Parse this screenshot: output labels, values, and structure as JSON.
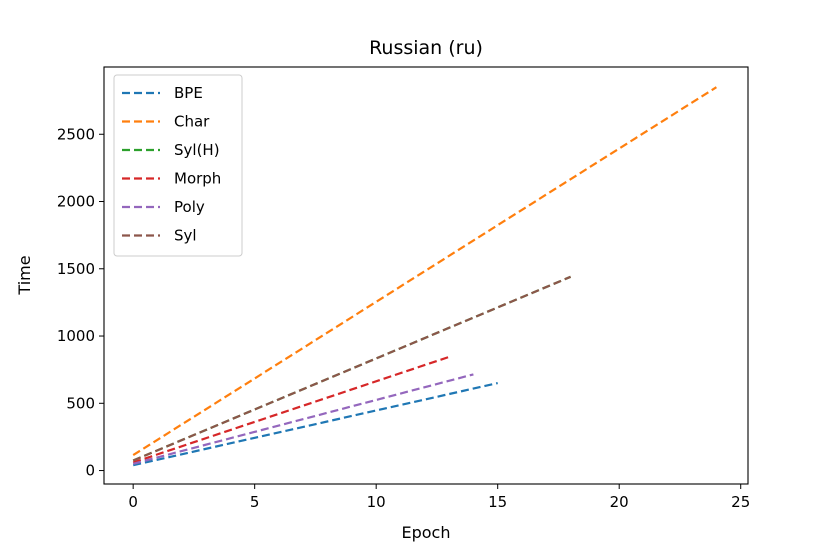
{
  "chart_data": {
    "type": "line",
    "title": "Russian (ru)",
    "xlabel": "Epoch",
    "ylabel": "Time",
    "xlim": [
      -1.2,
      25.3
    ],
    "ylim": [
      -100,
      3000
    ],
    "xticks": [
      0,
      5,
      10,
      15,
      20,
      25
    ],
    "yticks": [
      0,
      500,
      1000,
      1500,
      2000,
      2500
    ],
    "grid": false,
    "legend": "top-left",
    "line_style": "dashed",
    "series": [
      {
        "name": "BPE",
        "color": "#1f77b4",
        "x": [
          0,
          15
        ],
        "y": [
          40,
          650
        ]
      },
      {
        "name": "Char",
        "color": "#ff7f0e",
        "x": [
          0,
          24
        ],
        "y": [
          115,
          2850
        ]
      },
      {
        "name": "Syl(H)",
        "color": "#2ca02c",
        "x": [
          0,
          18
        ],
        "y": [
          75,
          1440
        ]
      },
      {
        "name": "Morph",
        "color": "#d62728",
        "x": [
          0,
          13
        ],
        "y": [
          60,
          845
        ]
      },
      {
        "name": "Poly",
        "color": "#9467bd",
        "x": [
          0,
          14
        ],
        "y": [
          50,
          715
        ]
      },
      {
        "name": "Syl",
        "color": "#8c564b",
        "x": [
          0,
          18
        ],
        "y": [
          75,
          1440
        ]
      }
    ]
  }
}
